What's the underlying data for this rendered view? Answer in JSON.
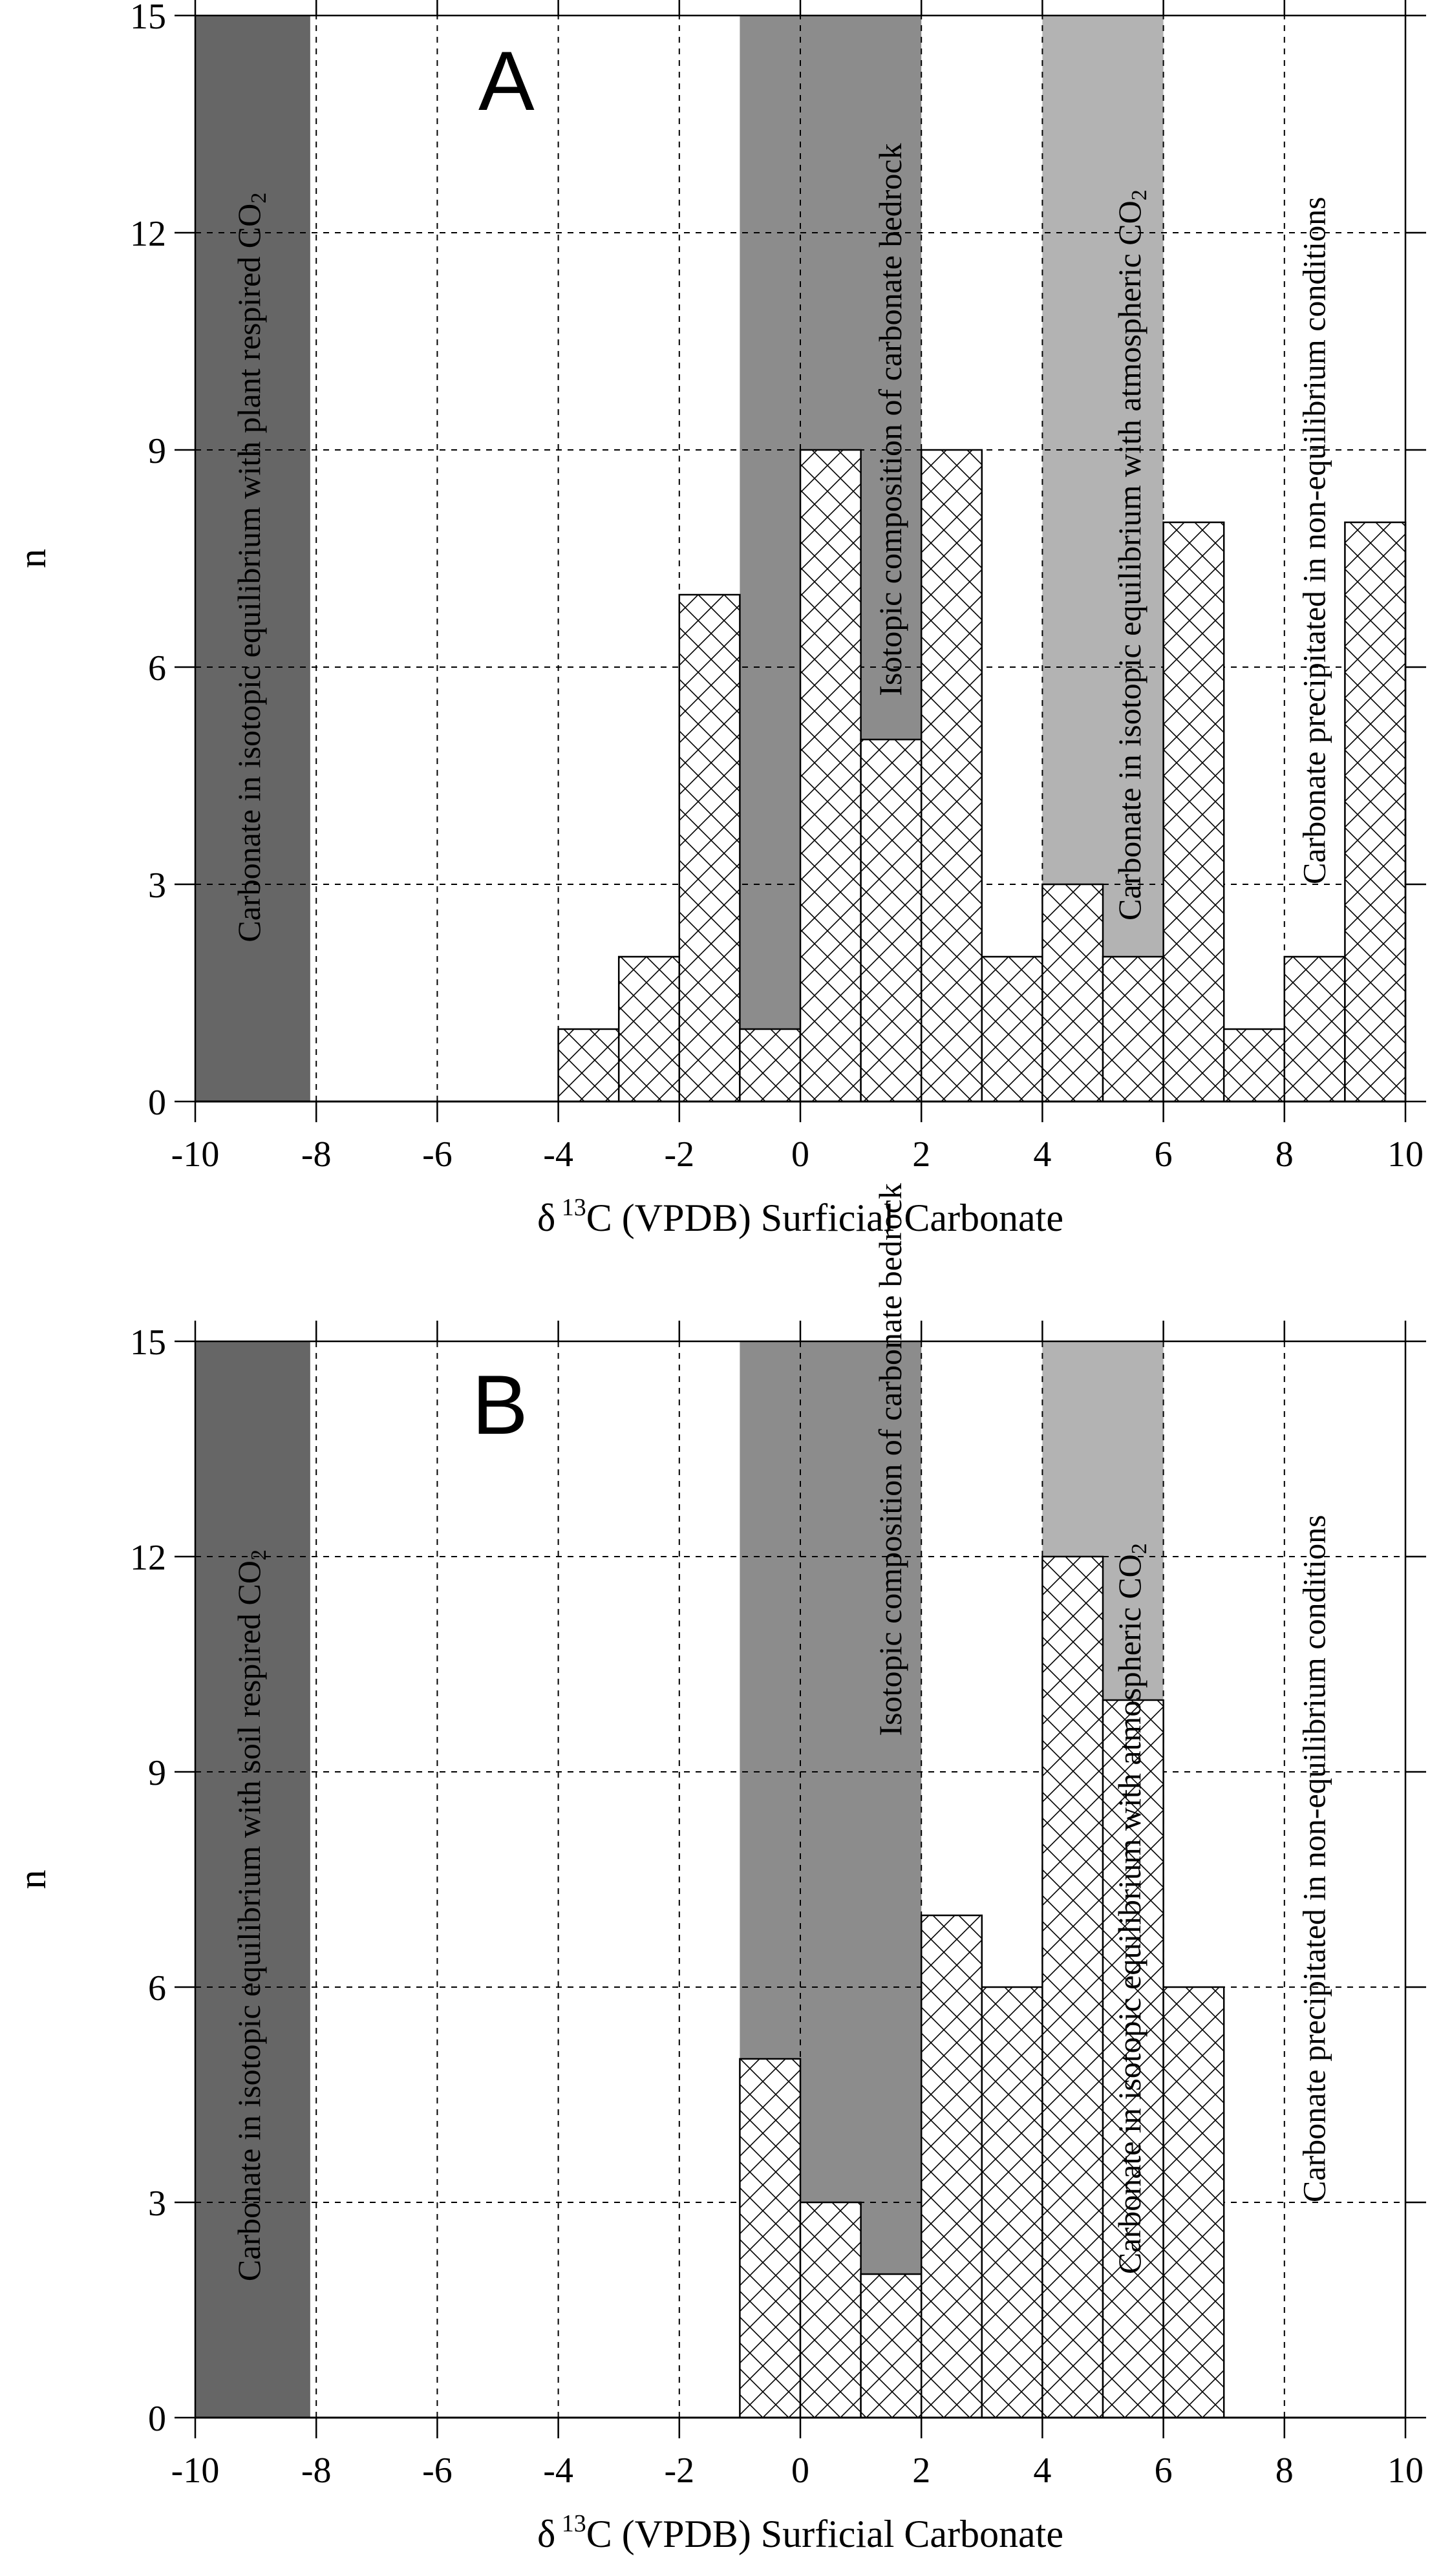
{
  "chart_data": [
    {
      "type": "bar",
      "panel": "A",
      "title": "",
      "xlabel": "δ 13C (VPDB) Surficial Carbonate",
      "xlabel_parts": {
        "delta": "δ",
        "sup": "13",
        "rest": "C (VPDB) Surficial Carbonate"
      },
      "ylabel": "n",
      "xlim": [
        -10,
        10
      ],
      "ylim": [
        0,
        15
      ],
      "xticks": [
        -10,
        -8,
        -6,
        -4,
        -2,
        0,
        2,
        4,
        6,
        8,
        10
      ],
      "yticks": [
        0,
        3,
        6,
        9,
        12,
        15
      ],
      "grid": true,
      "bin_width": 1,
      "bins": [
        {
          "x0": -4,
          "x1": -3,
          "n": 1
        },
        {
          "x0": -3,
          "x1": -2,
          "n": 2
        },
        {
          "x0": -2,
          "x1": -1,
          "n": 7
        },
        {
          "x0": -1,
          "x1": 0,
          "n": 1
        },
        {
          "x0": 0,
          "x1": 1,
          "n": 9
        },
        {
          "x0": 1,
          "x1": 2,
          "n": 5
        },
        {
          "x0": 2,
          "x1": 3,
          "n": 9
        },
        {
          "x0": 3,
          "x1": 4,
          "n": 2
        },
        {
          "x0": 4,
          "x1": 5,
          "n": 3
        },
        {
          "x0": 5,
          "x1": 6,
          "n": 2
        },
        {
          "x0": 6,
          "x1": 7,
          "n": 8
        },
        {
          "x0": 7,
          "x1": 8,
          "n": 1
        },
        {
          "x0": 8,
          "x1": 9,
          "n": 2
        },
        {
          "x0": 9,
          "x1": 10,
          "n": 8
        }
      ],
      "regions": [
        {
          "x0": -10,
          "x1": -8.1,
          "color": "#666666",
          "label": "Carbonate in isotopic equilibrium with plant respired CO",
          "label_sub": "2"
        },
        {
          "x0": -1,
          "x1": 2,
          "color": "#8c8c8c",
          "label": "Isotopic composition of carbonate bedrock",
          "label_sub": ""
        },
        {
          "x0": 4,
          "x1": 6,
          "color": "#b3b3b3",
          "label": "Carbonate in isotopic equilibrium with atmospheric CO",
          "label_sub": "2"
        },
        {
          "x0": 8,
          "x1": 10,
          "color": "none",
          "label": "Carbonate precipitated in non-equilibrium conditions",
          "label_sub": ""
        }
      ]
    },
    {
      "type": "bar",
      "panel": "B",
      "title": "",
      "xlabel": "δ 13C (VPDB) Surficial Carbonate",
      "xlabel_parts": {
        "delta": "δ",
        "sup": "13",
        "rest": "C (VPDB) Surficial Carbonate"
      },
      "ylabel": "n",
      "xlim": [
        -10,
        10
      ],
      "ylim": [
        0,
        15
      ],
      "xticks": [
        -10,
        -8,
        -6,
        -4,
        -2,
        0,
        2,
        4,
        6,
        8,
        10
      ],
      "yticks": [
        0,
        3,
        6,
        9,
        12,
        15
      ],
      "grid": true,
      "bin_width": 1,
      "bins": [
        {
          "x0": -1,
          "x1": 0,
          "n": 5
        },
        {
          "x0": 0,
          "x1": 1,
          "n": 3
        },
        {
          "x0": 1,
          "x1": 2,
          "n": 2
        },
        {
          "x0": 2,
          "x1": 3,
          "n": 7
        },
        {
          "x0": 3,
          "x1": 4,
          "n": 6
        },
        {
          "x0": 4,
          "x1": 5,
          "n": 12
        },
        {
          "x0": 5,
          "x1": 6,
          "n": 10
        },
        {
          "x0": 6,
          "x1": 7,
          "n": 6
        }
      ],
      "regions": [
        {
          "x0": -10,
          "x1": -8.1,
          "color": "#666666",
          "label": "Carbonate in isotopic equilibrium with soil respired CO",
          "label_sub": "2"
        },
        {
          "x0": -1,
          "x1": 2,
          "color": "#8c8c8c",
          "label": "Isotopic composition of carbonate bedrock",
          "label_sub": ""
        },
        {
          "x0": 4,
          "x1": 6,
          "color": "#b3b3b3",
          "label": "Carbonate in isotopic equilibrium with atmospheric CO",
          "label_sub": "2"
        },
        {
          "x0": 8,
          "x1": 10,
          "color": "none",
          "label": "Carbonate precipitated in non-equilibrium conditions",
          "label_sub": ""
        }
      ]
    }
  ]
}
